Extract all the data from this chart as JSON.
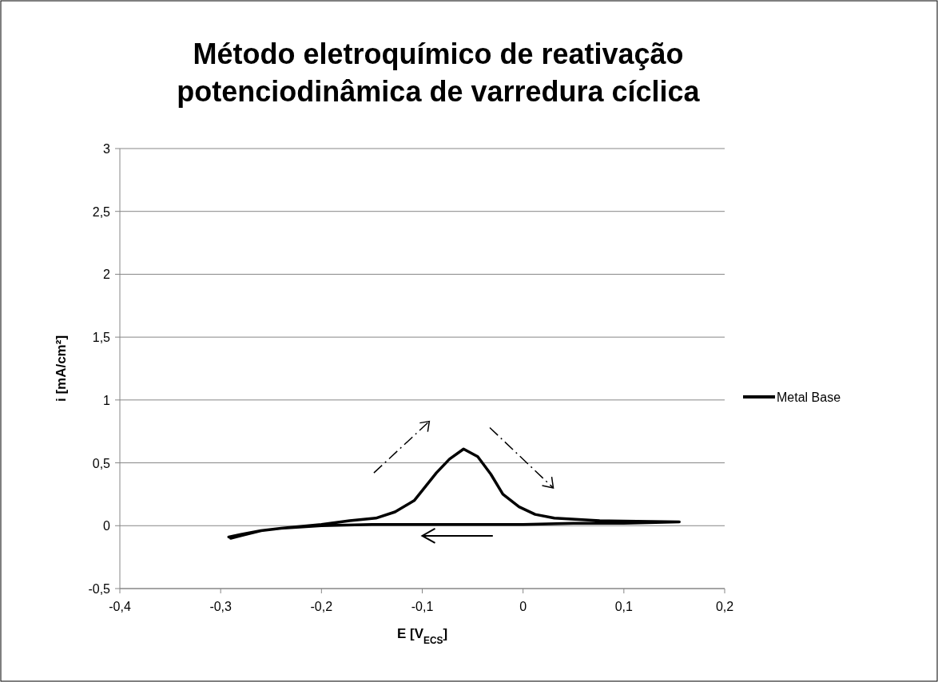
{
  "chart_data": {
    "type": "line",
    "title": "Método eletroquímico de reativação potenciodinâmica de varredura cíclica",
    "xlabel": "E [V$_{ECS}$]",
    "ylabel": "i [mA/cm²]",
    "xlim": [
      -0.4,
      0.2
    ],
    "xticks": [
      {
        "value": -0.4,
        "label": "-0,4"
      },
      {
        "value": -0.3,
        "label": "-0,3"
      },
      {
        "value": -0.2,
        "label": "-0,2"
      },
      {
        "value": -0.1,
        "label": "-0,1"
      },
      0,
      {
        "value": 0.1,
        "label": "0,1"
      },
      {
        "value": 0.2,
        "label": "0,2"
      }
    ],
    "ylim": [
      -0.5,
      3
    ],
    "yticks": [
      {
        "value": -0.5,
        "label": "-0,5"
      },
      0,
      {
        "value": 0.5,
        "label": "0,5"
      },
      1,
      {
        "value": 1.5,
        "label": "1,5"
      },
      2,
      {
        "value": 2.5,
        "label": "2,5"
      },
      3
    ],
    "grid": "y",
    "legend": "right",
    "line_style": "solid",
    "series": [
      {
        "name": "Metal Base",
        "color": "#000000",
        "x": [
          -0.292,
          -0.28,
          -0.26,
          -0.24,
          -0.2,
          -0.172,
          -0.146,
          -0.127,
          -0.108,
          -0.086,
          -0.073,
          -0.059,
          -0.045,
          -0.032,
          -0.02,
          -0.004,
          0.012,
          0.031,
          0.076,
          0.155,
          0.1,
          0.05,
          0,
          -0.05,
          -0.1,
          -0.15,
          -0.2,
          -0.24,
          -0.26,
          -0.28,
          -0.29
        ],
        "values": [
          -0.09,
          -0.07,
          -0.04,
          -0.02,
          0.01,
          0.04,
          0.06,
          0.11,
          0.2,
          0.42,
          0.53,
          0.61,
          0.55,
          0.41,
          0.25,
          0.15,
          0.09,
          0.06,
          0.04,
          0.03,
          0.02,
          0.02,
          0.01,
          0.01,
          0.01,
          0.01,
          0,
          -0.02,
          -0.04,
          -0.08,
          -0.1
        ]
      }
    ]
  }
}
